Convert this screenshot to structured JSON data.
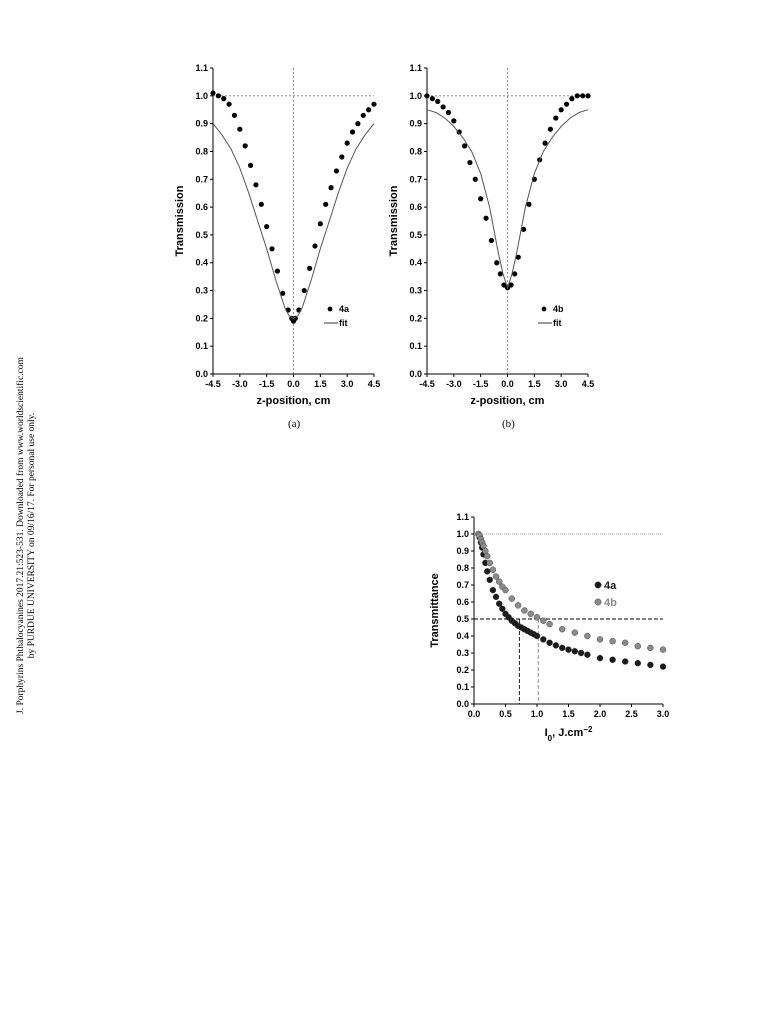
{
  "side_note": {
    "line1": "J. Porphyrins Phthalocyanines 2017.21:523-531. Downloaded from www.worldscientific.com",
    "line2": "by PURDUE UNIVERSITY on 09/16/17. For personal use only."
  },
  "captions": {
    "a": "(a)",
    "b": "(b)"
  },
  "chart_data": [
    {
      "id": "a",
      "type": "scatter",
      "xlabel": "z-position, cm",
      "ylabel": "Transmission",
      "xlim": [
        -4.5,
        4.5
      ],
      "ylim": [
        0.0,
        1.1
      ],
      "xticks": [
        "-4.5",
        "-3.0",
        "-1.5",
        "0.0",
        "1.5",
        "3.0",
        "4.5"
      ],
      "yticks": [
        "0.0",
        "0.1",
        "0.2",
        "0.3",
        "0.4",
        "0.5",
        "0.6",
        "0.7",
        "0.8",
        "0.9",
        "1.0",
        "1.1"
      ],
      "legend_position": "bottom-right",
      "series": [
        {
          "name": "4a",
          "style": "markers",
          "color": "#000000",
          "x": [
            -4.5,
            -4.2,
            -3.9,
            -3.6,
            -3.3,
            -3.0,
            -2.7,
            -2.4,
            -2.1,
            -1.8,
            -1.5,
            -1.2,
            -0.9,
            -0.6,
            -0.3,
            -0.1,
            0.0,
            0.1,
            0.3,
            0.6,
            0.9,
            1.2,
            1.5,
            1.8,
            2.1,
            2.4,
            2.7,
            3.0,
            3.3,
            3.6,
            3.9,
            4.2,
            4.5
          ],
          "y": [
            1.01,
            1.0,
            0.99,
            0.97,
            0.93,
            0.88,
            0.82,
            0.75,
            0.68,
            0.61,
            0.53,
            0.45,
            0.37,
            0.29,
            0.23,
            0.2,
            0.19,
            0.2,
            0.23,
            0.3,
            0.38,
            0.46,
            0.54,
            0.61,
            0.67,
            0.73,
            0.78,
            0.83,
            0.87,
            0.9,
            0.93,
            0.95,
            0.97
          ]
        },
        {
          "name": "fit",
          "style": "line",
          "color": "#555555",
          "x": [
            -4.5,
            -4.0,
            -3.5,
            -3.0,
            -2.5,
            -2.0,
            -1.5,
            -1.0,
            -0.5,
            -0.25,
            0.0,
            0.25,
            0.5,
            1.0,
            1.5,
            2.0,
            2.5,
            3.0,
            3.5,
            4.0,
            4.5
          ],
          "y": [
            0.9,
            0.86,
            0.81,
            0.74,
            0.65,
            0.55,
            0.45,
            0.34,
            0.24,
            0.21,
            0.2,
            0.21,
            0.24,
            0.34,
            0.45,
            0.55,
            0.65,
            0.74,
            0.81,
            0.86,
            0.9
          ]
        }
      ],
      "reference_lines": {
        "horizontal": 1.0,
        "vertical": 0.0
      }
    },
    {
      "id": "b",
      "type": "scatter",
      "xlabel": "z-position, cm",
      "ylabel": "Transmission",
      "xlim": [
        -4.5,
        4.5
      ],
      "ylim": [
        0.0,
        1.1
      ],
      "xticks": [
        "-4.5",
        "-3.0",
        "-1.5",
        "0.0",
        "1.5",
        "3.0",
        "4.5"
      ],
      "yticks": [
        "0.0",
        "0.1",
        "0.2",
        "0.3",
        "0.4",
        "0.5",
        "0.6",
        "0.7",
        "0.8",
        "0.9",
        "1.0",
        "1.1"
      ],
      "legend_position": "bottom-right",
      "series": [
        {
          "name": "4b",
          "style": "markers",
          "color": "#000000",
          "x": [
            -4.5,
            -4.2,
            -3.9,
            -3.6,
            -3.3,
            -3.0,
            -2.7,
            -2.4,
            -2.1,
            -1.8,
            -1.5,
            -1.2,
            -0.9,
            -0.6,
            -0.4,
            -0.2,
            0.0,
            0.2,
            0.4,
            0.6,
            0.9,
            1.2,
            1.5,
            1.8,
            2.1,
            2.4,
            2.7,
            3.0,
            3.3,
            3.6,
            3.9,
            4.2,
            4.5
          ],
          "y": [
            1.0,
            0.99,
            0.98,
            0.96,
            0.94,
            0.91,
            0.87,
            0.82,
            0.76,
            0.7,
            0.63,
            0.56,
            0.48,
            0.4,
            0.36,
            0.32,
            0.31,
            0.32,
            0.36,
            0.42,
            0.52,
            0.61,
            0.7,
            0.77,
            0.83,
            0.88,
            0.92,
            0.95,
            0.97,
            0.99,
            1.0,
            1.0,
            1.0
          ]
        },
        {
          "name": "fit",
          "style": "line",
          "color": "#555555",
          "x": [
            -4.5,
            -4.0,
            -3.5,
            -3.0,
            -2.5,
            -2.0,
            -1.5,
            -1.0,
            -0.5,
            -0.25,
            0.0,
            0.25,
            0.5,
            1.0,
            1.5,
            2.0,
            2.5,
            3.0,
            3.5,
            4.0,
            4.5
          ],
          "y": [
            0.95,
            0.94,
            0.92,
            0.89,
            0.85,
            0.8,
            0.72,
            0.6,
            0.43,
            0.36,
            0.31,
            0.36,
            0.43,
            0.6,
            0.72,
            0.8,
            0.85,
            0.89,
            0.92,
            0.94,
            0.95
          ]
        }
      ],
      "reference_lines": {
        "horizontal": 1.0,
        "vertical": 0.0
      }
    },
    {
      "id": "c",
      "type": "scatter",
      "xlabel_main": "I",
      "xlabel_sub": "0",
      "xlabel_rest": ", J.cm",
      "xlabel_sup": "−2",
      "ylabel": "Transmittance",
      "xlim": [
        0.0,
        3.0
      ],
      "ylim": [
        0.0,
        1.1
      ],
      "xticks": [
        "0.0",
        "0.5",
        "1.0",
        "1.5",
        "2.0",
        "2.5",
        "3.0"
      ],
      "yticks": [
        "0.0",
        "0.1",
        "0.2",
        "0.3",
        "0.4",
        "0.5",
        "0.6",
        "0.7",
        "0.8",
        "0.9",
        "1.0",
        "1.1"
      ],
      "legend_position": "right",
      "series": [
        {
          "name": "4a",
          "style": "markers",
          "color": "#1a1a1a",
          "x": [
            0.07,
            0.09,
            0.11,
            0.13,
            0.15,
            0.18,
            0.21,
            0.25,
            0.3,
            0.35,
            0.4,
            0.45,
            0.5,
            0.55,
            0.6,
            0.65,
            0.7,
            0.75,
            0.8,
            0.85,
            0.9,
            0.95,
            1.0,
            1.1,
            1.2,
            1.3,
            1.4,
            1.5,
            1.6,
            1.7,
            1.8,
            2.0,
            2.2,
            2.4,
            2.6,
            2.8,
            3.0
          ],
          "y": [
            1.0,
            0.98,
            0.95,
            0.92,
            0.88,
            0.83,
            0.78,
            0.73,
            0.67,
            0.63,
            0.59,
            0.56,
            0.53,
            0.51,
            0.49,
            0.475,
            0.46,
            0.45,
            0.44,
            0.43,
            0.42,
            0.41,
            0.4,
            0.38,
            0.36,
            0.345,
            0.33,
            0.32,
            0.31,
            0.3,
            0.29,
            0.27,
            0.26,
            0.25,
            0.24,
            0.23,
            0.22
          ]
        },
        {
          "name": "4b",
          "style": "markers",
          "color": "#8a8a8a",
          "x": [
            0.07,
            0.09,
            0.11,
            0.13,
            0.15,
            0.18,
            0.21,
            0.25,
            0.3,
            0.35,
            0.4,
            0.45,
            0.5,
            0.6,
            0.7,
            0.8,
            0.9,
            1.0,
            1.1,
            1.2,
            1.4,
            1.6,
            1.8,
            2.0,
            2.2,
            2.4,
            2.6,
            2.8,
            3.0
          ],
          "y": [
            1.0,
            0.99,
            0.97,
            0.95,
            0.93,
            0.9,
            0.87,
            0.83,
            0.79,
            0.75,
            0.72,
            0.69,
            0.67,
            0.62,
            0.58,
            0.55,
            0.53,
            0.51,
            0.49,
            0.47,
            0.44,
            0.42,
            0.4,
            0.38,
            0.37,
            0.36,
            0.34,
            0.33,
            0.32
          ]
        }
      ],
      "reference_lines": {
        "horizontal": [
          1.0,
          0.5
        ],
        "vertical_drop": [
          0.72,
          1.02
        ]
      }
    }
  ]
}
